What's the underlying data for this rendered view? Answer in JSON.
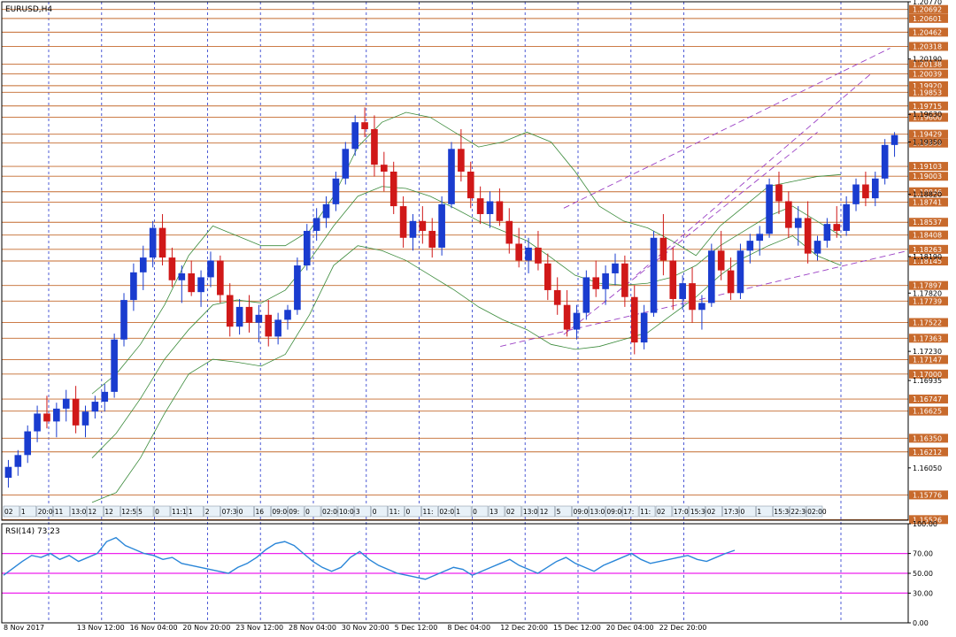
{
  "window": {
    "symbol_label": "EURUSD,H4"
  },
  "colors": {
    "bull": "#1a3ccf",
    "bear": "#d01818",
    "level": "#c46a2e",
    "level_box": "#c86a2c",
    "band": "#3a8a3a",
    "trend": "#9a3fc4",
    "grid": "#2233cc",
    "rsi_line": "#2a86d8",
    "rsi_level": "#ee22ee",
    "axis": "#000000"
  },
  "chart_data": [
    {
      "type": "candlestick",
      "title": "EURUSD,H4",
      "ylim": [
        1.1552,
        1.2077
      ],
      "price_axis_ticks": [
        "1.20770",
        "1.20190",
        "1.19630",
        "1.19350",
        "1.18820",
        "1.18190",
        "1.17820",
        "1.17230",
        "1.16935",
        "1.16050"
      ],
      "price_levels": [
        "1.20692",
        "1.20601",
        "1.20462",
        "1.20318",
        "1.20138",
        "1.20039",
        "1.19920",
        "1.19853",
        "1.19715",
        "1.19600",
        "1.19429",
        "1.19339",
        "1.19103",
        "1.19003",
        "1.18846",
        "1.18741",
        "1.18537",
        "1.18408",
        "1.18263",
        "1.18145",
        "1.17897",
        "1.17739",
        "1.17522",
        "1.17363",
        "1.17147",
        "1.17000",
        "1.16747",
        "1.16625",
        "1.16350",
        "1.16212",
        "1.15776",
        "1.15526"
      ],
      "date_labels": [
        "8 Nov 2017",
        "13 Nov 12:00",
        "16 Nov 04:00",
        "20 Nov 20:00",
        "23 Nov 12:00",
        "28 Nov 04:00",
        "30 Nov 20:00",
        "5 Dec 12:00",
        "8 Dec 04:00",
        "12 Dec 20:00",
        "15 Dec 12:00",
        "20 Dec 04:00",
        "22 Dec 20:00"
      ],
      "time_strip": [
        "02",
        "1",
        "20:00",
        "11",
        "13:0",
        "12",
        "12",
        "12:57",
        "5",
        "0",
        "11:17",
        "1",
        "2",
        "07:30",
        "0",
        "16",
        "09:00",
        "09:",
        "0",
        "02:00",
        "10:00",
        "3",
        "0",
        "11:",
        "0",
        "11:",
        "02:0",
        "1",
        "0",
        "13",
        "02",
        "13:0",
        "12",
        "5",
        "09:00",
        "13:0",
        "09:00",
        "17:",
        "11:",
        "02",
        "17:0",
        "15:30",
        "02",
        "17:30",
        "0",
        "1",
        "15:30",
        "22:30",
        "02:00"
      ],
      "candles": [
        [
          1.1595,
          1.1613,
          1.1585,
          1.1606
        ],
        [
          1.1606,
          1.1623,
          1.1597,
          1.1618
        ],
        [
          1.1618,
          1.1648,
          1.161,
          1.1642
        ],
        [
          1.1642,
          1.1668,
          1.1631,
          1.166
        ],
        [
          1.166,
          1.1678,
          1.1645,
          1.1652
        ],
        [
          1.1652,
          1.1671,
          1.1636,
          1.1665
        ],
        [
          1.1665,
          1.1684,
          1.1652,
          1.1675
        ],
        [
          1.1675,
          1.1688,
          1.164,
          1.1648
        ],
        [
          1.1648,
          1.1668,
          1.1636,
          1.1662
        ],
        [
          1.1662,
          1.1678,
          1.1655,
          1.1672
        ],
        [
          1.1672,
          1.169,
          1.1662,
          1.1682
        ],
        [
          1.1682,
          1.1741,
          1.1676,
          1.1735
        ],
        [
          1.1735,
          1.1782,
          1.1728,
          1.1775
        ],
        [
          1.1775,
          1.1812,
          1.1764,
          1.1803
        ],
        [
          1.1803,
          1.183,
          1.1785,
          1.1818
        ],
        [
          1.1818,
          1.1855,
          1.1808,
          1.1848
        ],
        [
          1.1848,
          1.1862,
          1.181,
          1.1818
        ],
        [
          1.1818,
          1.1828,
          1.1788,
          1.1795
        ],
        [
          1.1795,
          1.181,
          1.1772,
          1.1802
        ],
        [
          1.1802,
          1.1815,
          1.1779,
          1.1783
        ],
        [
          1.1783,
          1.1805,
          1.1768,
          1.1798
        ],
        [
          1.1798,
          1.1824,
          1.1788,
          1.1815
        ],
        [
          1.1815,
          1.182,
          1.1772,
          1.178
        ],
        [
          1.178,
          1.1792,
          1.1738,
          1.1748
        ],
        [
          1.1748,
          1.1776,
          1.174,
          1.1768
        ],
        [
          1.1768,
          1.178,
          1.1742,
          1.1752
        ],
        [
          1.1752,
          1.177,
          1.1732,
          1.176
        ],
        [
          1.176,
          1.1775,
          1.1728,
          1.1738
        ],
        [
          1.1738,
          1.1762,
          1.173,
          1.1755
        ],
        [
          1.1755,
          1.177,
          1.1745,
          1.1765
        ],
        [
          1.1765,
          1.1818,
          1.176,
          1.181
        ],
        [
          1.181,
          1.1852,
          1.1805,
          1.1845
        ],
        [
          1.1845,
          1.1868,
          1.1835,
          1.1858
        ],
        [
          1.1858,
          1.188,
          1.1848,
          1.1872
        ],
        [
          1.1872,
          1.1905,
          1.1865,
          1.1898
        ],
        [
          1.1898,
          1.1935,
          1.1892,
          1.1928
        ],
        [
          1.1928,
          1.1962,
          1.1921,
          1.1955
        ],
        [
          1.1955,
          1.197,
          1.194,
          1.1948
        ],
        [
          1.1948,
          1.1962,
          1.19,
          1.1912
        ],
        [
          1.1912,
          1.1925,
          1.1885,
          1.1905
        ],
        [
          1.1905,
          1.1915,
          1.1862,
          1.187
        ],
        [
          1.187,
          1.188,
          1.1828,
          1.1838
        ],
        [
          1.1838,
          1.1862,
          1.1825,
          1.1855
        ],
        [
          1.1855,
          1.187,
          1.1832,
          1.1845
        ],
        [
          1.1845,
          1.1858,
          1.1818,
          1.1828
        ],
        [
          1.1828,
          1.188,
          1.182,
          1.1872
        ],
        [
          1.1872,
          1.1935,
          1.1868,
          1.1928
        ],
        [
          1.1928,
          1.1948,
          1.1895,
          1.1905
        ],
        [
          1.1905,
          1.1915,
          1.1868,
          1.1878
        ],
        [
          1.1878,
          1.189,
          1.1852,
          1.1862
        ],
        [
          1.1862,
          1.1885,
          1.1848,
          1.1875
        ],
        [
          1.1875,
          1.1888,
          1.185,
          1.1855
        ],
        [
          1.1855,
          1.1868,
          1.1822,
          1.1832
        ],
        [
          1.1832,
          1.1848,
          1.1808,
          1.1815
        ],
        [
          1.1815,
          1.1838,
          1.1802,
          1.1828
        ],
        [
          1.1828,
          1.1845,
          1.1805,
          1.1812
        ],
        [
          1.1812,
          1.1822,
          1.1775,
          1.1785
        ],
        [
          1.1785,
          1.1798,
          1.176,
          1.177
        ],
        [
          1.177,
          1.1785,
          1.1738,
          1.1745
        ],
        [
          1.1745,
          1.177,
          1.1735,
          1.1762
        ],
        [
          1.1762,
          1.1805,
          1.1755,
          1.1798
        ],
        [
          1.1798,
          1.1815,
          1.1778,
          1.1786
        ],
        [
          1.1786,
          1.181,
          1.177,
          1.1802
        ],
        [
          1.1802,
          1.1822,
          1.179,
          1.1812
        ],
        [
          1.1812,
          1.182,
          1.1768,
          1.1778
        ],
        [
          1.1778,
          1.179,
          1.172,
          1.1732
        ],
        [
          1.1732,
          1.177,
          1.1725,
          1.1762
        ],
        [
          1.1762,
          1.1845,
          1.1758,
          1.1838
        ],
        [
          1.1838,
          1.1862,
          1.18,
          1.1815
        ],
        [
          1.1815,
          1.1828,
          1.1765,
          1.1776
        ],
        [
          1.1776,
          1.18,
          1.1765,
          1.1792
        ],
        [
          1.1792,
          1.1808,
          1.1752,
          1.1765
        ],
        [
          1.1765,
          1.178,
          1.1745,
          1.1772
        ],
        [
          1.1772,
          1.1832,
          1.1768,
          1.1825
        ],
        [
          1.1825,
          1.1845,
          1.1795,
          1.1805
        ],
        [
          1.1805,
          1.1818,
          1.1775,
          1.1782
        ],
        [
          1.1782,
          1.1832,
          1.1776,
          1.1825
        ],
        [
          1.1825,
          1.1842,
          1.1812,
          1.1835
        ],
        [
          1.1835,
          1.185,
          1.182,
          1.1842
        ],
        [
          1.1842,
          1.1898,
          1.1838,
          1.1892
        ],
        [
          1.1892,
          1.1905,
          1.1862,
          1.1875
        ],
        [
          1.1875,
          1.1885,
          1.1838,
          1.1848
        ],
        [
          1.1848,
          1.187,
          1.183,
          1.1858
        ],
        [
          1.1858,
          1.1875,
          1.1812,
          1.1822
        ],
        [
          1.1822,
          1.184,
          1.1815,
          1.1835
        ],
        [
          1.1835,
          1.1858,
          1.1828,
          1.1852
        ],
        [
          1.1852,
          1.187,
          1.1838,
          1.1845
        ],
        [
          1.1845,
          1.188,
          1.184,
          1.1872
        ],
        [
          1.1872,
          1.1898,
          1.1865,
          1.1892
        ],
        [
          1.1892,
          1.1905,
          1.187,
          1.1878
        ],
        [
          1.1878,
          1.1905,
          1.187,
          1.1898
        ],
        [
          1.1898,
          1.1938,
          1.1892,
          1.1932
        ],
        [
          1.1932,
          1.1945,
          1.192,
          1.1942
        ]
      ],
      "bollinger": {
        "upper": [
          1.168,
          1.17,
          1.173,
          1.177,
          1.182,
          1.185,
          1.184,
          1.183,
          1.183,
          1.1845,
          1.188,
          1.193,
          1.1955,
          1.1965,
          1.196,
          1.1945,
          1.193,
          1.1935,
          1.1945,
          1.1935,
          1.1905,
          1.187,
          1.1855,
          1.1848,
          1.1835,
          1.182,
          1.185,
          1.187,
          1.189,
          1.1895,
          1.19,
          1.1902
        ],
        "middle": [
          1.1615,
          1.164,
          1.1675,
          1.1715,
          1.1745,
          1.177,
          1.1775,
          1.1772,
          1.1785,
          1.1815,
          1.185,
          1.188,
          1.189,
          1.1888,
          1.188,
          1.1868,
          1.1855,
          1.1845,
          1.1835,
          1.1818,
          1.18,
          1.1792,
          1.179,
          1.1792,
          1.1798,
          1.181,
          1.183,
          1.1845,
          1.186,
          1.187,
          1.1855,
          1.184
        ],
        "lower": [
          1.157,
          1.158,
          1.1615,
          1.166,
          1.17,
          1.1715,
          1.1712,
          1.1708,
          1.172,
          1.176,
          1.181,
          1.183,
          1.1825,
          1.1815,
          1.18,
          1.1785,
          1.1768,
          1.1755,
          1.1745,
          1.173,
          1.1725,
          1.1728,
          1.1735,
          1.1742,
          1.176,
          1.1778,
          1.18,
          1.1818,
          1.183,
          1.184,
          1.182,
          1.181
        ]
      },
      "trend_lines": [
        {
          "from": [
            0.62,
            1.1868
          ],
          "to": [
            0.98,
            1.203
          ]
        },
        {
          "from": [
            0.55,
            1.1728
          ],
          "to": [
            1.0,
            1.1825
          ]
        },
        {
          "from": [
            0.62,
            1.174
          ],
          "to": [
            0.9,
            1.1945
          ]
        },
        {
          "from": [
            0.7,
            1.18
          ],
          "to": [
            0.96,
            1.2005
          ]
        }
      ]
    },
    {
      "type": "line",
      "title": "RSI(14) 73.23",
      "ylim": [
        0,
        100
      ],
      "y_ticks": [
        "100.00",
        "70.00",
        "50.00",
        "30.00",
        "0.00"
      ],
      "levels": [
        70,
        50,
        30
      ],
      "values": [
        48,
        55,
        62,
        68,
        66,
        70,
        64,
        68,
        62,
        66,
        70,
        82,
        86,
        78,
        74,
        70,
        68,
        64,
        66,
        60,
        58,
        56,
        54,
        52,
        50,
        56,
        60,
        66,
        74,
        80,
        82,
        78,
        70,
        62,
        56,
        52,
        56,
        66,
        72,
        64,
        58,
        54,
        50,
        48,
        46,
        44,
        48,
        52,
        56,
        54,
        48,
        52,
        56,
        60,
        64,
        58,
        54,
        50,
        56,
        62,
        66,
        60,
        56,
        52,
        58,
        62,
        66,
        70,
        64,
        60,
        62,
        64,
        66,
        68,
        64,
        62,
        66,
        70,
        73.23
      ]
    }
  ]
}
